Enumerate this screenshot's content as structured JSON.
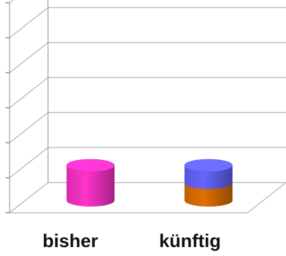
{
  "chart_data": {
    "type": "bar",
    "style": "3d-cylinder",
    "categories": [
      "bisher",
      "künftig"
    ],
    "series": [
      {
        "values": [
          1.0,
          0.5
        ],
        "color": "#ff33cc"
      },
      {
        "values": [
          0,
          0.5
        ],
        "color": "#6666ff"
      }
    ],
    "segment_colors": {
      "bisher": [
        "#ff33cc"
      ],
      "künftig": [
        "#e07000",
        "#6666ff"
      ]
    },
    "ylim": [
      0,
      6
    ],
    "grid": true,
    "legend": "none"
  }
}
